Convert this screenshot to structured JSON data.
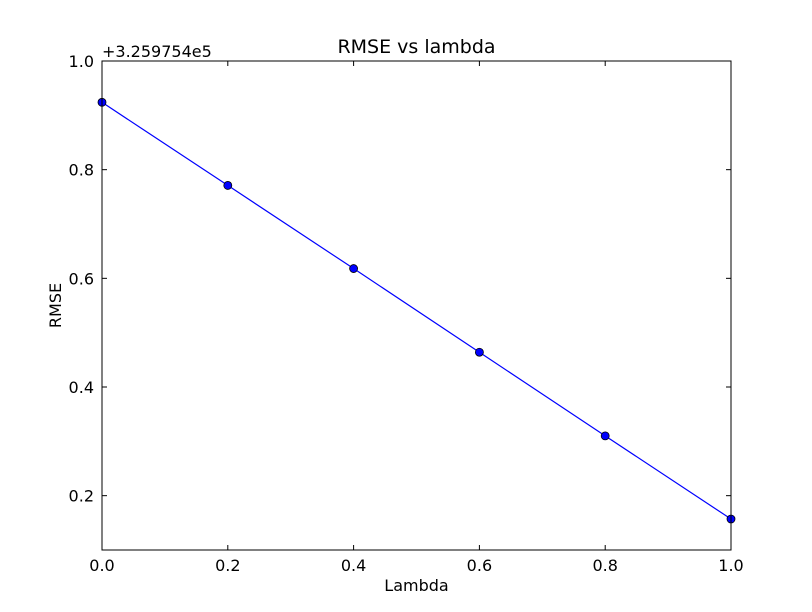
{
  "chart_data": {
    "type": "line",
    "title": "RMSE vs lambda",
    "xlabel": "Lambda",
    "ylabel": "RMSE",
    "y_offset_label": "+3.259754e5",
    "xlim": [
      0.0,
      1.0
    ],
    "ylim": [
      0.1,
      1.0
    ],
    "xticks": [
      "0.0",
      "0.2",
      "0.4",
      "0.6",
      "0.8",
      "1.0"
    ],
    "yticks": [
      "0.2",
      "0.4",
      "0.6",
      "0.8",
      "1.0"
    ],
    "grid": false,
    "series": [
      {
        "x": [
          0.0,
          0.2,
          0.4,
          0.6,
          0.8,
          1.0
        ],
        "y": [
          0.924,
          0.771,
          0.618,
          0.464,
          0.31,
          0.157
        ],
        "color": "#0000ff",
        "marker": "circle"
      }
    ]
  }
}
